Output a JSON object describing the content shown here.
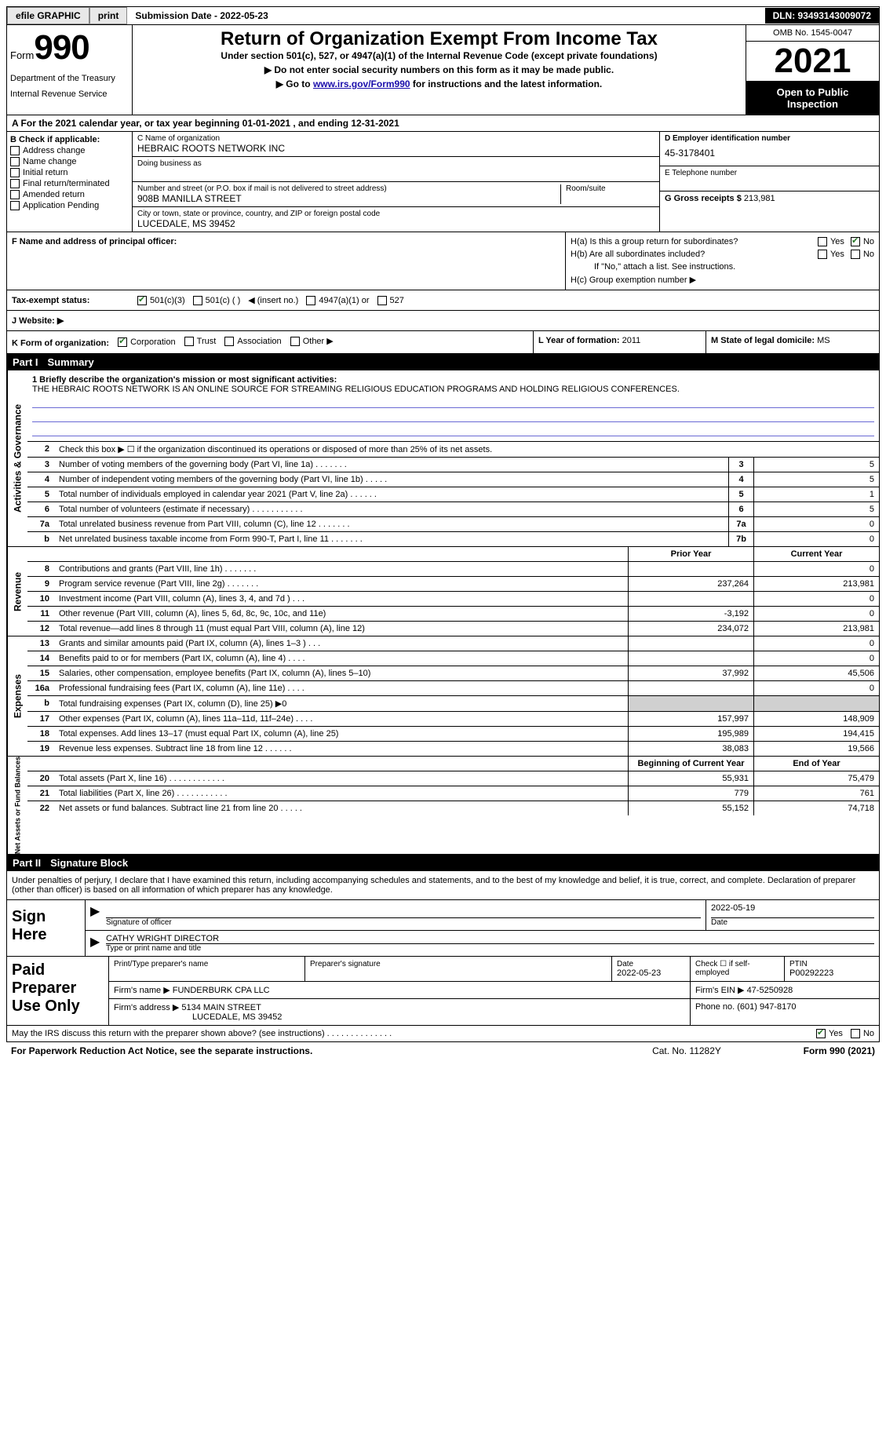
{
  "topbar": {
    "efile": "efile GRAPHIC",
    "print": "print",
    "submission": "Submission Date - 2022-05-23",
    "dln": "DLN: 93493143009072"
  },
  "header": {
    "form_word": "Form",
    "form_num": "990",
    "title": "Return of Organization Exempt From Income Tax",
    "subtitle": "Under section 501(c), 527, or 4947(a)(1) of the Internal Revenue Code (except private foundations)",
    "note1": "▶ Do not enter social security numbers on this form as it may be made public.",
    "note2_pre": "▶ Go to ",
    "note2_link": "www.irs.gov/Form990",
    "note2_post": " for instructions and the latest information.",
    "dept": "Department of the Treasury",
    "irs": "Internal Revenue Service",
    "omb": "OMB No. 1545-0047",
    "year": "2021",
    "open": "Open to Public Inspection"
  },
  "rowA": "A For the 2021 calendar year, or tax year beginning 01-01-2021    , and ending 12-31-2021",
  "colB": {
    "title": "B Check if applicable:",
    "items": [
      "Address change",
      "Name change",
      "Initial return",
      "Final return/terminated",
      "Amended return",
      "Application Pending"
    ]
  },
  "colC": {
    "name_label": "C Name of organization",
    "name": "HEBRAIC ROOTS NETWORK INC",
    "dba_label": "Doing business as",
    "street_label": "Number and street (or P.O. box if mail is not delivered to street address)",
    "room_label": "Room/suite",
    "street": "908B MANILLA STREET",
    "city_label": "City or town, state or province, country, and ZIP or foreign postal code",
    "city": "LUCEDALE, MS  39452"
  },
  "colD": {
    "ein_label": "D Employer identification number",
    "ein": "45-3178401",
    "phone_label": "E Telephone number",
    "gross_label": "G Gross receipts $",
    "gross": "213,981"
  },
  "rowF": {
    "label": "F  Name and address of principal officer:",
    "ha_label": "H(a)  Is this a group return for subordinates?",
    "hb_label": "H(b)  Are all subordinates included?",
    "hb_note": "If \"No,\" attach a list. See instructions.",
    "hc_label": "H(c)  Group exemption number ▶",
    "yes": "Yes",
    "no": "No"
  },
  "taxexempt": {
    "label": "Tax-exempt status:",
    "c3": "501(c)(3)",
    "c": "501(c) (  )",
    "insert": "◀ (insert no.)",
    "a1": "4947(a)(1) or",
    "s527": "527"
  },
  "website": {
    "label": "J  Website: ▶"
  },
  "rowK": {
    "klabel": "K Form of organization:",
    "corp": "Corporation",
    "trust": "Trust",
    "assoc": "Association",
    "other": "Other ▶",
    "llabel": "L Year of formation:",
    "lval": "2011",
    "mlabel": "M State of legal domicile:",
    "mval": "MS"
  },
  "part1": {
    "header": "Part I",
    "title": "Summary",
    "mission_label": "1   Briefly describe the organization's mission or most significant activities:",
    "mission": "THE HEBRAIC ROOTS NETWORK IS AN ONLINE SOURCE FOR STREAMING RELIGIOUS EDUCATION PROGRAMS AND HOLDING RELIGIOUS CONFERENCES.",
    "line2": "Check this box ▶ ☐ if the organization discontinued its operations or disposed of more than 25% of its net assets.",
    "tabs": {
      "ag": "Activities & Governance",
      "rev": "Revenue",
      "exp": "Expenses",
      "net": "Net Assets or Fund Balances"
    },
    "prior": "Prior Year",
    "current": "Current Year",
    "begin": "Beginning of Current Year",
    "end": "End of Year",
    "lines_ag": [
      {
        "n": "3",
        "d": "Number of voting members of the governing body (Part VI, line 1a)  .   .   .   .   .   .   .",
        "b": "3",
        "v": "5"
      },
      {
        "n": "4",
        "d": "Number of independent voting members of the governing body (Part VI, line 1b)  .   .   .   .   .",
        "b": "4",
        "v": "5"
      },
      {
        "n": "5",
        "d": "Total number of individuals employed in calendar year 2021 (Part V, line 2a)  .   .   .   .   .   .",
        "b": "5",
        "v": "1"
      },
      {
        "n": "6",
        "d": "Total number of volunteers (estimate if necessary)   .   .   .   .   .   .   .   .   .   .   .",
        "b": "6",
        "v": "5"
      },
      {
        "n": "7a",
        "d": "Total unrelated business revenue from Part VIII, column (C), line 12   .   .   .   .   .   .   .",
        "b": "7a",
        "v": "0"
      },
      {
        "n": "b",
        "d": "Net unrelated business taxable income from Form 990-T, Part I, line 11  .   .   .   .   .   .   .",
        "b": "7b",
        "v": "0"
      }
    ],
    "lines_rev": [
      {
        "n": "8",
        "d": "Contributions and grants (Part VIII, line 1h)  .   .   .   .   .   .   .",
        "p": "",
        "c": "0"
      },
      {
        "n": "9",
        "d": "Program service revenue (Part VIII, line 2g)   .   .   .   .   .   .   .",
        "p": "237,264",
        "c": "213,981"
      },
      {
        "n": "10",
        "d": "Investment income (Part VIII, column (A), lines 3, 4, and 7d )   .   .   .",
        "p": "",
        "c": "0"
      },
      {
        "n": "11",
        "d": "Other revenue (Part VIII, column (A), lines 5, 6d, 8c, 9c, 10c, and 11e)",
        "p": "-3,192",
        "c": "0"
      },
      {
        "n": "12",
        "d": "Total revenue—add lines 8 through 11 (must equal Part VIII, column (A), line 12)",
        "p": "234,072",
        "c": "213,981"
      }
    ],
    "lines_exp": [
      {
        "n": "13",
        "d": "Grants and similar amounts paid (Part IX, column (A), lines 1–3 )  .   .   .",
        "p": "",
        "c": "0"
      },
      {
        "n": "14",
        "d": "Benefits paid to or for members (Part IX, column (A), line 4)  .   .   .   .",
        "p": "",
        "c": "0"
      },
      {
        "n": "15",
        "d": "Salaries, other compensation, employee benefits (Part IX, column (A), lines 5–10)",
        "p": "37,992",
        "c": "45,506"
      },
      {
        "n": "16a",
        "d": "Professional fundraising fees (Part IX, column (A), line 11e)  .   .   .   .",
        "p": "",
        "c": "0"
      },
      {
        "n": "b",
        "d": "Total fundraising expenses (Part IX, column (D), line 25) ▶0",
        "p": "shaded",
        "c": "shaded"
      },
      {
        "n": "17",
        "d": "Other expenses (Part IX, column (A), lines 11a–11d, 11f–24e)  .   .   .   .",
        "p": "157,997",
        "c": "148,909"
      },
      {
        "n": "18",
        "d": "Total expenses. Add lines 13–17 (must equal Part IX, column (A), line 25)",
        "p": "195,989",
        "c": "194,415"
      },
      {
        "n": "19",
        "d": "Revenue less expenses. Subtract line 18 from line 12  .   .   .   .   .   .",
        "p": "38,083",
        "c": "19,566"
      }
    ],
    "lines_net": [
      {
        "n": "20",
        "d": "Total assets (Part X, line 16)  .   .   .   .   .   .   .   .   .   .   .   .",
        "p": "55,931",
        "c": "75,479"
      },
      {
        "n": "21",
        "d": "Total liabilities (Part X, line 26)  .   .   .   .   .   .   .   .   .   .   .",
        "p": "779",
        "c": "761"
      },
      {
        "n": "22",
        "d": "Net assets or fund balances. Subtract line 21 from line 20  .   .   .   .   .",
        "p": "55,152",
        "c": "74,718"
      }
    ]
  },
  "part2": {
    "header": "Part II",
    "title": "Signature Block",
    "declaration": "Under penalties of perjury, I declare that I have examined this return, including accompanying schedules and statements, and to the best of my knowledge and belief, it is true, correct, and complete. Declaration of preparer (other than officer) is based on all information of which preparer has any knowledge.",
    "sign_here": "Sign Here",
    "sig_officer": "Signature of officer",
    "sig_date": "2022-05-19",
    "date_label": "Date",
    "officer_name": "CATHY WRIGHT  DIRECTOR",
    "type_name": "Type or print name and title",
    "paid": "Paid Preparer Use Only",
    "prep_name_label": "Print/Type preparer's name",
    "prep_sig_label": "Preparer's signature",
    "prep_date_label": "Date",
    "prep_date": "2022-05-23",
    "check_self": "Check ☐ if self-employed",
    "ptin_label": "PTIN",
    "ptin": "P00292223",
    "firm_name_label": "Firm's name      ▶",
    "firm_name": "FUNDERBURK CPA LLC",
    "firm_ein_label": "Firm's EIN ▶",
    "firm_ein": "47-5250928",
    "firm_addr_label": "Firm's address ▶",
    "firm_addr1": "5134 MAIN STREET",
    "firm_addr2": "LUCEDALE, MS  39452",
    "phone_label": "Phone no.",
    "phone": "(601) 947-8170",
    "discuss": "May the IRS discuss this return with the preparer shown above? (see instructions)  .   .   .   .   .   .   .   .   .   .   .   .   .   .",
    "yes": "Yes",
    "no": "No"
  },
  "footer": {
    "pra": "For Paperwork Reduction Act Notice, see the separate instructions.",
    "cat": "Cat. No. 11282Y",
    "form": "Form 990 (2021)"
  }
}
